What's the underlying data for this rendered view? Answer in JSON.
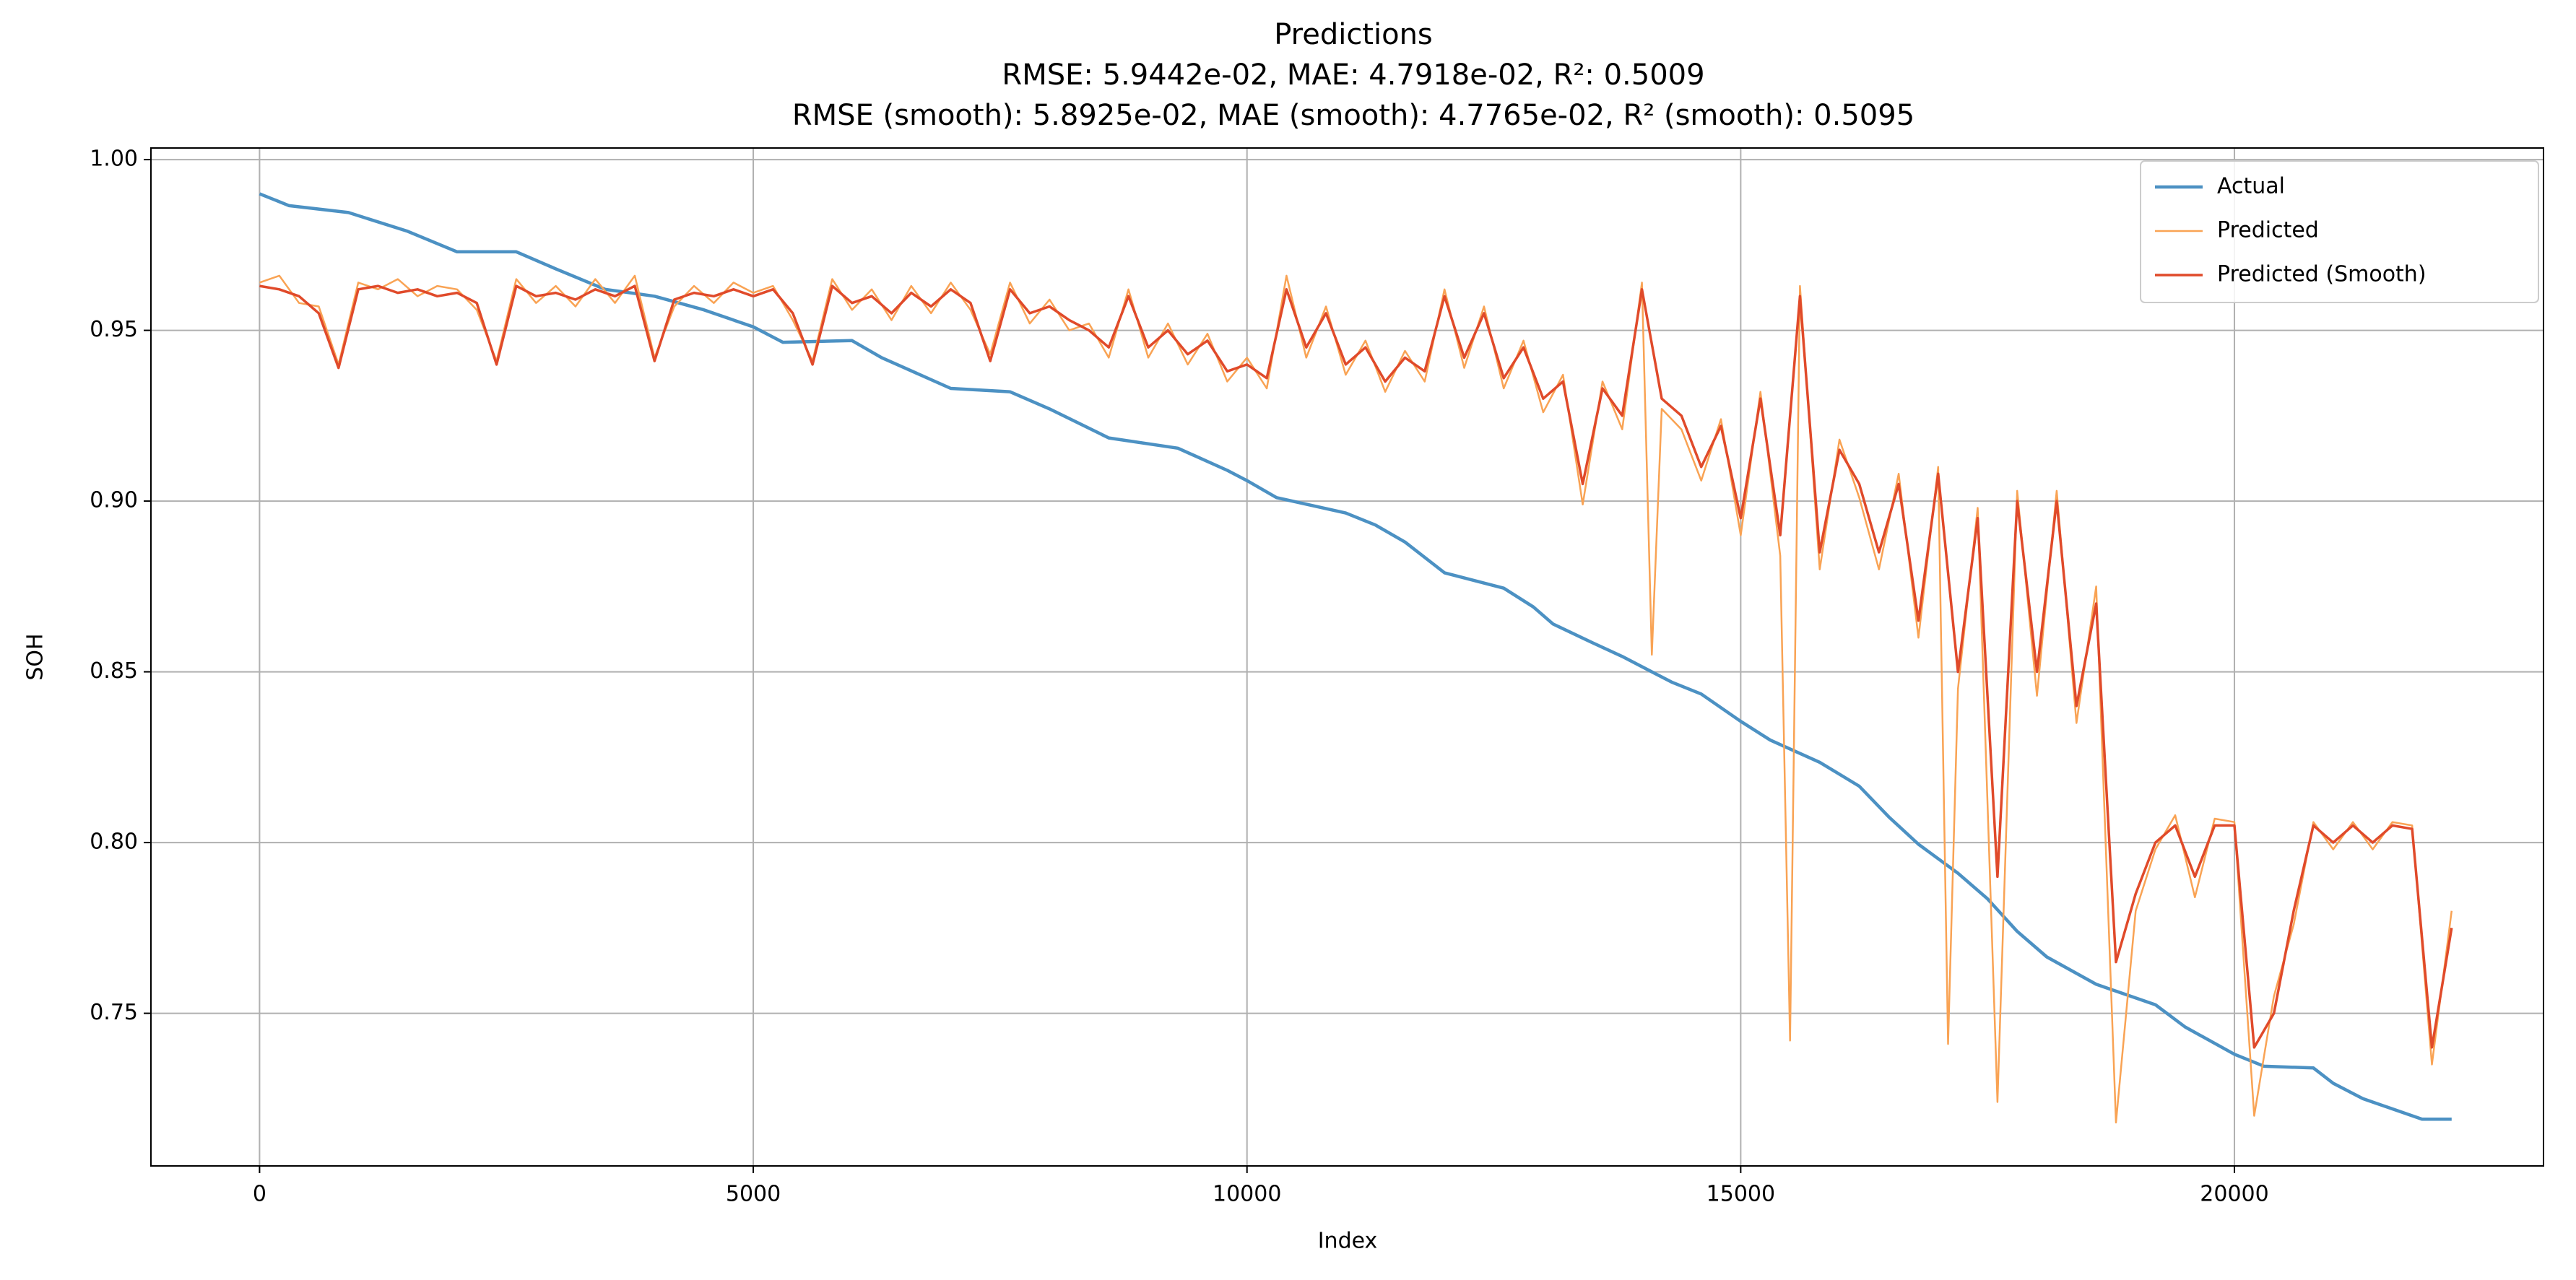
{
  "chart_data": {
    "type": "line",
    "title": "Predictions",
    "subtitle": [
      "RMSE: 5.9442e-02, MAE: 4.7918e-02, R²: 0.5009",
      "RMSE (smooth): 5.8925e-02, MAE (smooth): 4.7765e-02, R² (smooth): 0.5095"
    ],
    "x_label": "Index",
    "y_label": "SOH",
    "xlim": [
      -1100,
      23130
    ],
    "ylim": [
      0.7053,
      1.0034
    ],
    "xticks": [
      0,
      5000,
      10000,
      15000,
      20000
    ],
    "yticks": [
      0.75,
      {
        "value": 0.8,
        "label": "0.80"
      },
      0.85,
      {
        "value": 0.9,
        "label": "0.90"
      },
      0.95,
      {
        "value": 1,
        "label": "1.00"
      }
    ],
    "grid": true,
    "legend": "upper right",
    "series": [
      {
        "name": "Actual",
        "color": "#4c91c3",
        "width": 4.5,
        "x": [
          0,
          300,
          900,
          1500,
          2000,
          2600,
          3000,
          3500,
          4000,
          4500,
          5000,
          5300,
          6000,
          6300,
          7000,
          7600,
          8000,
          8600,
          9300,
          9800,
          10000,
          10300,
          11000,
          11300,
          11600,
          12000,
          12600,
          12900,
          13100,
          13500,
          13800,
          14300,
          14600,
          15000,
          15300,
          15800,
          16200,
          16500,
          16800,
          17200,
          17500,
          17800,
          18100,
          18600,
          19200,
          19500,
          20000,
          20300,
          20800,
          21000,
          21300,
          21900,
          22200
        ],
        "values": [
          0.99,
          0.9865,
          0.9845,
          0.979,
          0.973,
          0.973,
          0.968,
          0.962,
          0.96,
          0.956,
          0.951,
          0.9465,
          0.947,
          0.942,
          0.933,
          0.932,
          0.927,
          0.9185,
          0.9155,
          0.909,
          0.906,
          0.901,
          0.8965,
          0.893,
          0.888,
          0.879,
          0.8745,
          0.869,
          0.864,
          0.8585,
          0.8545,
          0.847,
          0.8435,
          0.8355,
          0.83,
          0.8235,
          0.8165,
          0.8075,
          0.7995,
          0.791,
          0.7835,
          0.774,
          0.7665,
          0.7585,
          0.7525,
          0.746,
          0.738,
          0.7345,
          0.734,
          0.7295,
          0.725,
          0.719,
          0.719
        ]
      },
      {
        "name": "Predicted",
        "color": "#f9a354",
        "width": 2.5,
        "x": [
          0,
          200,
          400,
          600,
          800,
          1000,
          1200,
          1400,
          1600,
          1800,
          2000,
          2200,
          2400,
          2600,
          2800,
          3000,
          3200,
          3400,
          3600,
          3800,
          4000,
          4200,
          4400,
          4600,
          4800,
          5000,
          5200,
          5400,
          5600,
          5800,
          6000,
          6200,
          6400,
          6600,
          6800,
          7000,
          7200,
          7400,
          7600,
          7800,
          8000,
          8200,
          8400,
          8600,
          8800,
          9000,
          9200,
          9400,
          9600,
          9800,
          10000,
          10200,
          10400,
          10600,
          10800,
          11000,
          11200,
          11400,
          11600,
          11800,
          12000,
          12200,
          12400,
          12600,
          12800,
          13000,
          13200,
          13400,
          13600,
          13800,
          14000,
          14100,
          14200,
          14400,
          14600,
          14800,
          15000,
          15200,
          15400,
          15500,
          15600,
          15800,
          16000,
          16200,
          16400,
          16600,
          16800,
          17000,
          17100,
          17200,
          17400,
          17600,
          17800,
          18000,
          18200,
          18400,
          18600,
          18800,
          19000,
          19200,
          19400,
          19600,
          19800,
          20000,
          20200,
          20400,
          20600,
          20800,
          21000,
          21200,
          21400,
          21600,
          21800,
          22000,
          22200
        ],
        "values": [
          0.964,
          0.966,
          0.958,
          0.957,
          0.94,
          0.964,
          0.962,
          0.965,
          0.96,
          0.963,
          0.962,
          0.956,
          0.941,
          0.965,
          0.958,
          0.963,
          0.957,
          0.965,
          0.958,
          0.966,
          0.942,
          0.957,
          0.963,
          0.958,
          0.964,
          0.961,
          0.963,
          0.953,
          0.941,
          0.965,
          0.956,
          0.962,
          0.953,
          0.963,
          0.955,
          0.964,
          0.956,
          0.943,
          0.964,
          0.952,
          0.959,
          0.95,
          0.952,
          0.942,
          0.962,
          0.942,
          0.952,
          0.94,
          0.949,
          0.935,
          0.942,
          0.933,
          0.966,
          0.942,
          0.957,
          0.937,
          0.947,
          0.932,
          0.944,
          0.935,
          0.962,
          0.939,
          0.957,
          0.933,
          0.947,
          0.926,
          0.937,
          0.899,
          0.935,
          0.921,
          0.964,
          0.855,
          0.927,
          0.921,
          0.906,
          0.924,
          0.89,
          0.932,
          0.884,
          0.742,
          0.963,
          0.88,
          0.918,
          0.901,
          0.88,
          0.908,
          0.86,
          0.91,
          0.741,
          0.845,
          0.898,
          0.724,
          0.903,
          0.843,
          0.903,
          0.835,
          0.875,
          0.718,
          0.78,
          0.798,
          0.808,
          0.784,
          0.807,
          0.806,
          0.72,
          0.755,
          0.776,
          0.806,
          0.798,
          0.806,
          0.798,
          0.806,
          0.805,
          0.735,
          0.78
        ]
      },
      {
        "name": "Predicted (Smooth)",
        "color": "#e04a2a",
        "width": 3.5,
        "x": [
          0,
          200,
          400,
          600,
          800,
          1000,
          1200,
          1400,
          1600,
          1800,
          2000,
          2200,
          2400,
          2600,
          2800,
          3000,
          3200,
          3400,
          3600,
          3800,
          4000,
          4200,
          4400,
          4600,
          4800,
          5000,
          5200,
          5400,
          5600,
          5800,
          6000,
          6200,
          6400,
          6600,
          6800,
          7000,
          7200,
          7400,
          7600,
          7800,
          8000,
          8200,
          8400,
          8600,
          8800,
          9000,
          9200,
          9400,
          9600,
          9800,
          10000,
          10200,
          10400,
          10600,
          10800,
          11000,
          11200,
          11400,
          11600,
          11800,
          12000,
          12200,
          12400,
          12600,
          12800,
          13000,
          13200,
          13400,
          13600,
          13800,
          14000,
          14200,
          14400,
          14600,
          14800,
          15000,
          15200,
          15400,
          15600,
          15800,
          16000,
          16200,
          16400,
          16600,
          16800,
          17000,
          17200,
          17400,
          17600,
          17800,
          18000,
          18200,
          18400,
          18600,
          18800,
          19000,
          19200,
          19400,
          19600,
          19800,
          20000,
          20200,
          20400,
          20600,
          20800,
          21000,
          21200,
          21400,
          21600,
          21800,
          22000,
          22200
        ],
        "values": [
          0.963,
          0.962,
          0.96,
          0.955,
          0.939,
          0.962,
          0.963,
          0.961,
          0.962,
          0.96,
          0.961,
          0.958,
          0.94,
          0.963,
          0.96,
          0.961,
          0.959,
          0.962,
          0.96,
          0.963,
          0.941,
          0.959,
          0.961,
          0.96,
          0.962,
          0.96,
          0.962,
          0.955,
          0.94,
          0.963,
          0.958,
          0.96,
          0.955,
          0.961,
          0.957,
          0.962,
          0.958,
          0.941,
          0.962,
          0.955,
          0.957,
          0.953,
          0.95,
          0.945,
          0.96,
          0.945,
          0.95,
          0.943,
          0.947,
          0.938,
          0.94,
          0.936,
          0.962,
          0.945,
          0.955,
          0.94,
          0.945,
          0.935,
          0.942,
          0.938,
          0.96,
          0.942,
          0.955,
          0.936,
          0.945,
          0.93,
          0.935,
          0.905,
          0.933,
          0.925,
          0.962,
          0.93,
          0.925,
          0.91,
          0.922,
          0.895,
          0.93,
          0.89,
          0.96,
          0.885,
          0.915,
          0.905,
          0.885,
          0.905,
          0.865,
          0.908,
          0.85,
          0.895,
          0.79,
          0.9,
          0.85,
          0.9,
          0.84,
          0.87,
          0.765,
          0.785,
          0.8,
          0.805,
          0.79,
          0.805,
          0.805,
          0.74,
          0.75,
          0.78,
          0.805,
          0.8,
          0.805,
          0.8,
          0.805,
          0.804,
          0.74,
          0.775
        ]
      }
    ]
  }
}
